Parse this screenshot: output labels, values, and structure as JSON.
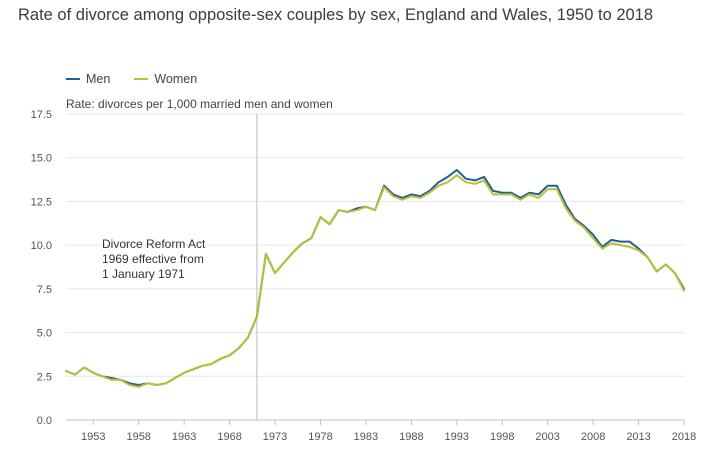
{
  "chart_data": {
    "type": "line",
    "title": "Rate of divorce among opposite-sex couples by sex, England and Wales, 1950 to 2018",
    "ylabel": "Rate: divorces per 1,000 married men and women",
    "xlabel": "",
    "ylim": [
      0,
      17.5
    ],
    "xlim": [
      1950,
      2018
    ],
    "y_ticks": [
      "0.0",
      "2.5",
      "5.0",
      "7.5",
      "10.0",
      "12.5",
      "15.0",
      "17.5"
    ],
    "x_ticks": [
      "1953",
      "1958",
      "1963",
      "1968",
      "1973",
      "1978",
      "1983",
      "1988",
      "1993",
      "1998",
      "2003",
      "2008",
      "2013",
      "2018"
    ],
    "grid": true,
    "legend_position": "top-left",
    "annotation": {
      "x": 1971,
      "lines": [
        "Divorce Reform Act",
        "1969 effective from",
        "1 January 1971"
      ]
    },
    "x": [
      1950,
      1951,
      1952,
      1953,
      1954,
      1955,
      1956,
      1957,
      1958,
      1959,
      1960,
      1961,
      1962,
      1963,
      1964,
      1965,
      1966,
      1967,
      1968,
      1969,
      1970,
      1971,
      1972,
      1973,
      1974,
      1975,
      1976,
      1977,
      1978,
      1979,
      1980,
      1981,
      1982,
      1983,
      1984,
      1985,
      1986,
      1987,
      1988,
      1989,
      1990,
      1991,
      1992,
      1993,
      1994,
      1995,
      1996,
      1997,
      1998,
      1999,
      2000,
      2001,
      2002,
      2003,
      2004,
      2005,
      2006,
      2007,
      2008,
      2009,
      2010,
      2011,
      2012,
      2013,
      2014,
      2015,
      2016,
      2017,
      2018
    ],
    "series": [
      {
        "name": "Men",
        "color": "#206095",
        "values": [
          2.8,
          2.6,
          3.0,
          2.7,
          2.5,
          2.4,
          2.3,
          2.1,
          2.0,
          2.1,
          2.0,
          2.1,
          2.4,
          2.7,
          2.9,
          3.1,
          3.2,
          3.5,
          3.7,
          4.1,
          4.7,
          5.9,
          9.5,
          8.4,
          9.0,
          9.6,
          10.1,
          10.4,
          11.6,
          11.2,
          12.0,
          11.9,
          12.1,
          12.2,
          12.0,
          13.4,
          12.9,
          12.7,
          12.9,
          12.8,
          13.1,
          13.6,
          13.9,
          14.3,
          13.8,
          13.7,
          13.9,
          13.1,
          13.0,
          13.0,
          12.7,
          13.0,
          12.9,
          13.4,
          13.4,
          12.3,
          11.5,
          11.1,
          10.6,
          9.9,
          10.3,
          10.2,
          10.2,
          9.8,
          9.3,
          8.5,
          8.9,
          8.4,
          7.5
        ]
      },
      {
        "name": "Women",
        "color": "#bcbe35",
        "values": [
          2.8,
          2.6,
          3.0,
          2.7,
          2.5,
          2.3,
          2.3,
          2.0,
          1.9,
          2.1,
          2.0,
          2.1,
          2.4,
          2.7,
          2.9,
          3.1,
          3.2,
          3.5,
          3.7,
          4.1,
          4.7,
          5.9,
          9.5,
          8.4,
          9.0,
          9.6,
          10.1,
          10.4,
          11.6,
          11.2,
          12.0,
          11.9,
          12.0,
          12.2,
          12.0,
          13.3,
          12.8,
          12.6,
          12.8,
          12.7,
          13.0,
          13.4,
          13.6,
          14.0,
          13.6,
          13.5,
          13.7,
          12.9,
          12.9,
          12.9,
          12.6,
          12.9,
          12.7,
          13.2,
          13.2,
          12.1,
          11.4,
          11.0,
          10.4,
          9.8,
          10.1,
          10.0,
          9.9,
          9.7,
          9.3,
          8.5,
          8.9,
          8.4,
          7.4
        ]
      }
    ]
  }
}
